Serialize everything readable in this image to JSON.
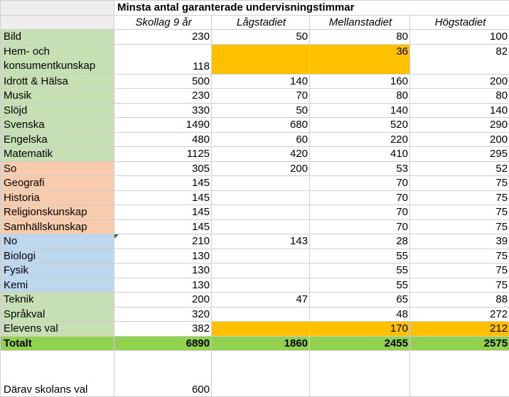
{
  "title": "Minsta antal garanterade undervisningstimmar",
  "columns": [
    "Skollag 9 år",
    "Lågstadiet",
    "Mellanstadiet",
    "Högstadiet"
  ],
  "colors": {
    "green": "#c6e0b4",
    "salmon": "#f8cbad",
    "blue": "#bdd7ee",
    "orange": "#ffc000",
    "total_green": "#92d050"
  },
  "rows": [
    {
      "label": "Bild",
      "values": [
        "230",
        "50",
        "80",
        "100"
      ]
    },
    {
      "label_line1": "Hem- och",
      "label_line2": "konsumentkunskap",
      "values": [
        "118",
        "",
        "36",
        "82"
      ]
    },
    {
      "label": "Idrott & Hälsa",
      "values": [
        "500",
        "140",
        "160",
        "200"
      ]
    },
    {
      "label": "Musik",
      "values": [
        "230",
        "70",
        "80",
        "80"
      ]
    },
    {
      "label": "Slöjd",
      "values": [
        "330",
        "50",
        "140",
        "140"
      ]
    },
    {
      "label": "Svenska",
      "values": [
        "1490",
        "680",
        "520",
        "290"
      ]
    },
    {
      "label": "Engelska",
      "values": [
        "480",
        "60",
        "220",
        "200"
      ]
    },
    {
      "label": "Matematik",
      "values": [
        "1125",
        "420",
        "410",
        "295"
      ]
    },
    {
      "label": "So",
      "values": [
        "305",
        "200",
        "53",
        "52"
      ]
    },
    {
      "label": "Geografi",
      "values": [
        "145",
        "",
        "70",
        "75"
      ]
    },
    {
      "label": "Historia",
      "values": [
        "145",
        "",
        "70",
        "75"
      ]
    },
    {
      "label": "Religionskunskap",
      "values": [
        "145",
        "",
        "70",
        "75"
      ]
    },
    {
      "label": "Samhällskunskap",
      "values": [
        "145",
        "",
        "70",
        "75"
      ]
    },
    {
      "label": "No",
      "values": [
        "210",
        "143",
        "28",
        "39"
      ]
    },
    {
      "label": "Biologi",
      "values": [
        "130",
        "",
        "55",
        "75"
      ]
    },
    {
      "label": "Fysik",
      "values": [
        "130",
        "",
        "55",
        "75"
      ]
    },
    {
      "label": "Kemi",
      "values": [
        "130",
        "",
        "55",
        "75"
      ]
    },
    {
      "label": "Teknik",
      "values": [
        "200",
        "47",
        "65",
        "88"
      ]
    },
    {
      "label": "Språkval",
      "values": [
        "320",
        "",
        "48",
        "272"
      ]
    },
    {
      "label": "Elevens val",
      "values": [
        "382",
        "",
        "170",
        "212"
      ]
    }
  ],
  "total": {
    "label": "Totalt",
    "values": [
      "6890",
      "1860",
      "2455",
      "2575"
    ]
  },
  "footer": {
    "label": "Därav skolans val",
    "values": [
      "600",
      "",
      "",
      ""
    ]
  }
}
